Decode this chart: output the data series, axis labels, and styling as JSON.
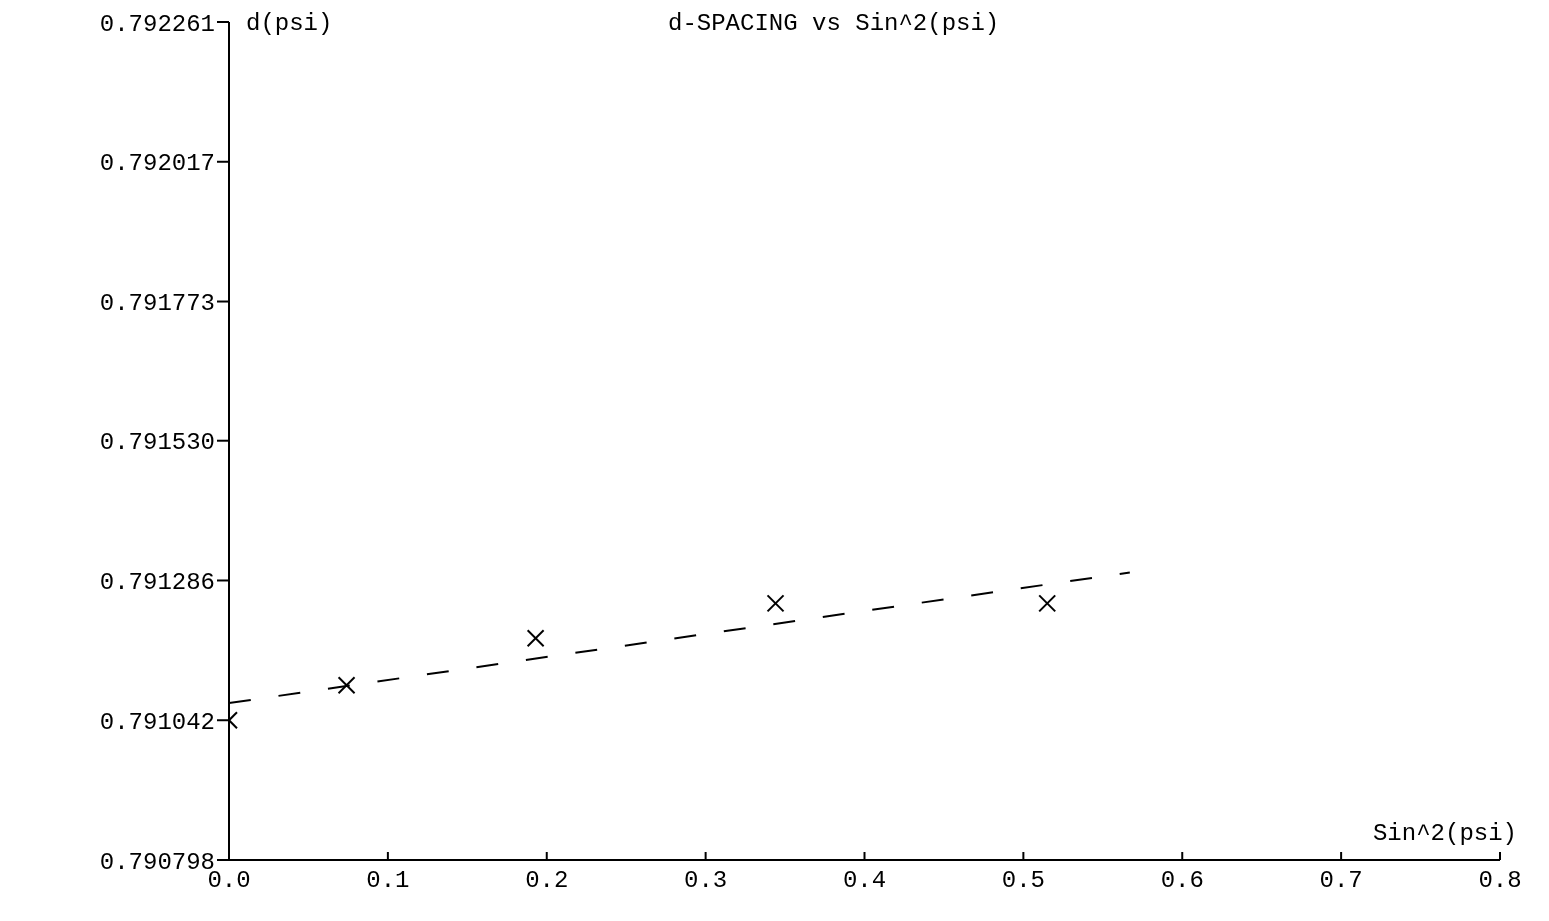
{
  "chart_data": {
    "type": "scatter",
    "title": "d-SPACING vs Sin^2(psi)",
    "xlabel": "Sin^2(psi)",
    "ylabel": "d(psi)",
    "xlim": [
      0,
      0.8
    ],
    "xticks": [
      {
        "value": 0,
        "label": "0.0"
      },
      {
        "value": 0.1,
        "label": "0.1"
      },
      {
        "value": 0.2,
        "label": "0.2"
      },
      {
        "value": 0.3,
        "label": "0.3"
      },
      {
        "value": 0.4,
        "label": "0.4"
      },
      {
        "value": 0.5,
        "label": "0.5"
      },
      {
        "value": 0.6,
        "label": "0.6"
      },
      {
        "value": 0.7,
        "label": "0.7"
      },
      {
        "value": 0.8,
        "label": "0.8"
      }
    ],
    "ylim": [
      0.790798,
      0.792261
    ],
    "yticks": [
      0.790798,
      0.791042,
      0.791286,
      {
        "value": 0.79153,
        "label": "0.791530"
      },
      0.791773,
      0.792017,
      0.792261
    ],
    "grid": false,
    "legend": false,
    "series": [
      {
        "type": "scatter",
        "color": "#000000",
        "marker": "cross",
        "x": [
          0.0,
          0.074,
          0.193,
          0.344,
          0.515
        ],
        "values": [
          0.791042,
          0.791103,
          0.791185,
          0.791246,
          0.791246
        ]
      },
      {
        "type": "line",
        "color": "#000000",
        "marker": "none",
        "line_style": "dashed",
        "x": [
          0.0,
          0.567
        ],
        "values": [
          0.791072,
          0.7913
        ]
      }
    ]
  }
}
